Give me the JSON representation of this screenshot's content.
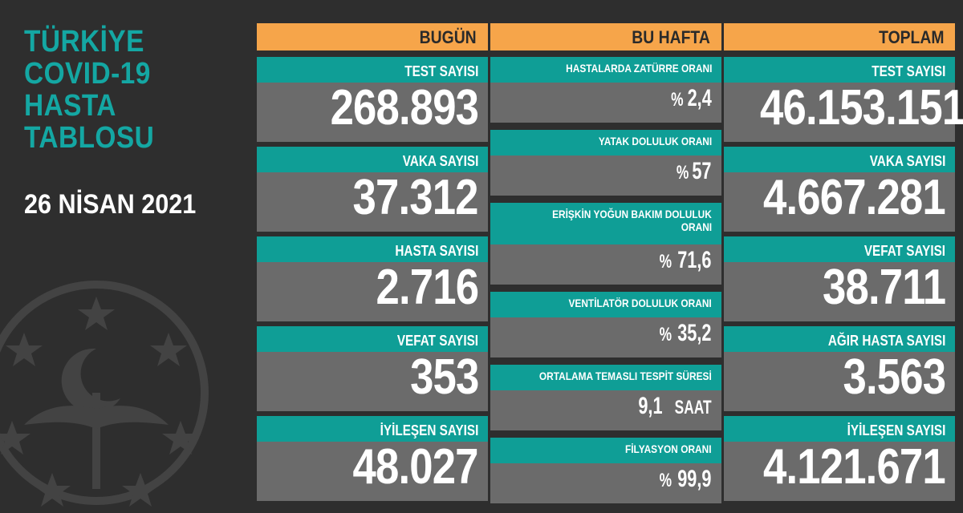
{
  "header": {
    "title_lines": [
      "TÜRKİYE",
      "COVID-19",
      "HASTA",
      "TABLOSU"
    ],
    "date": "26 NİSAN 2021"
  },
  "columns": {
    "today": {
      "heading": "BUGÜN",
      "cards": [
        {
          "label": "TEST SAYISI",
          "value": "268.893"
        },
        {
          "label": "VAKA SAYISI",
          "value": "37.312"
        },
        {
          "label": "HASTA SAYISI",
          "value": "2.716"
        },
        {
          "label": "VEFAT SAYISI",
          "value": "353"
        },
        {
          "label": "İYİLEŞEN SAYISI",
          "value": "48.027"
        }
      ]
    },
    "week": {
      "heading": "BU HAFTA",
      "cards": [
        {
          "label": "HASTALARDA ZATÜRRE ORANI",
          "prefix": "%",
          "value": "2,4"
        },
        {
          "label": "YATAK DOLULUK ORANI",
          "prefix": "%",
          "value": "57"
        },
        {
          "label_line1": "ERİŞKİN YOĞUN BAKIM DOLULUK",
          "label_line2": "ORANI",
          "prefix": "%",
          "value": "71,6"
        },
        {
          "label": "VENTİLATÖR DOLULUK ORANI",
          "prefix": "%",
          "value": "35,2"
        },
        {
          "label": "ORTALAMA TEMASLI TESPİT SÜRESİ",
          "value": "9,1",
          "unit": "SAAT"
        },
        {
          "label": "FİLYASYON ORANI",
          "prefix": "%",
          "value": "99,9"
        }
      ]
    },
    "total": {
      "heading": "TOPLAM",
      "cards": [
        {
          "label": "TEST SAYISI",
          "value": "46.153.151"
        },
        {
          "label": "VAKA SAYISI",
          "value": "4.667.281"
        },
        {
          "label": "VEFAT SAYISI",
          "value": "38.711"
        },
        {
          "label": "AĞIR HASTA SAYISI",
          "value": "3.563"
        },
        {
          "label": "İYİLEŞEN SAYISI",
          "value": "4.121.671"
        }
      ]
    }
  },
  "colors": {
    "background": "#2e2e2e",
    "teal": "#0f9e96",
    "title_teal": "#14a7a3",
    "orange": "#f6a54a",
    "card_gray": "#6b6b6b"
  }
}
